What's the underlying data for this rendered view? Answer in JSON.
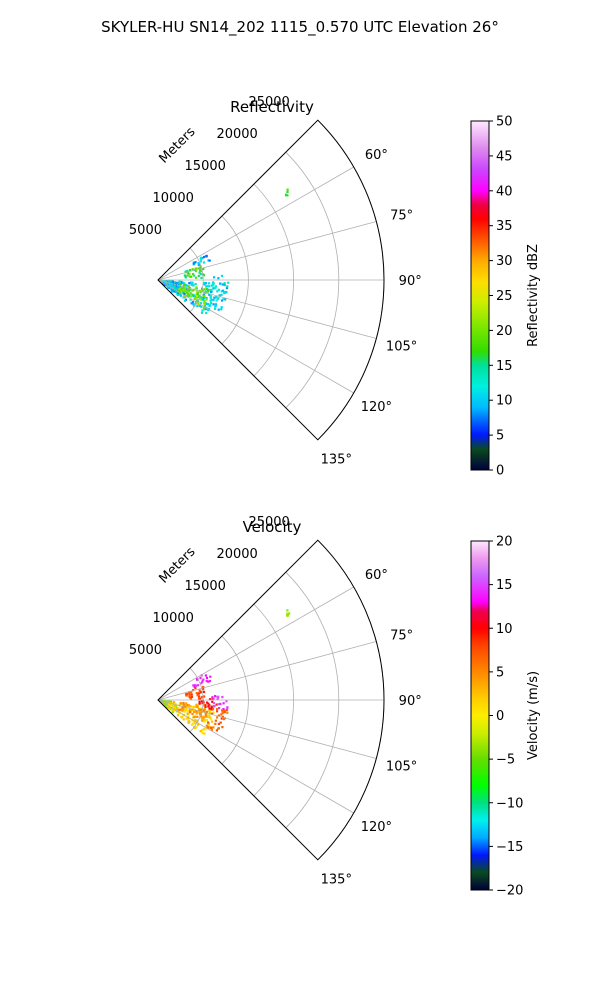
{
  "figure": {
    "suptitle": "SKYLER-HU  SN14_202  1115_0.570 UTC Elevation 26°"
  },
  "chart_data": [
    {
      "type": "heatmap",
      "title": "Reflectivity",
      "projection": "polar-sector",
      "radial_label": "Meters",
      "r_ticks": [
        5000,
        10000,
        15000,
        20000,
        25000
      ],
      "r_tick_labels": [
        "5000",
        "10000",
        "15000",
        "20000",
        "25000"
      ],
      "rlim": [
        0,
        25000
      ],
      "theta_range_deg": [
        45,
        135
      ],
      "theta_ticks_deg": [
        60,
        75,
        90,
        105,
        120,
        135
      ],
      "theta_tick_labels": [
        "60°",
        "75°",
        "90°",
        "105°",
        "120°",
        "135°"
      ],
      "grid": true,
      "colorbar": {
        "label": "Reflectivity dBZ",
        "range": [
          0,
          50
        ],
        "ticks": [
          0,
          5,
          10,
          15,
          20,
          25,
          30,
          35,
          40,
          45,
          50
        ],
        "tick_labels": [
          "0",
          "5",
          "10",
          "15",
          "20",
          "25",
          "30",
          "35",
          "40",
          "45",
          "50"
        ],
        "stops": [
          [
            0,
            "#00003a"
          ],
          [
            3,
            "#0a4a1e"
          ],
          [
            5,
            "#0018ff"
          ],
          [
            7,
            "#0066ff"
          ],
          [
            9,
            "#00bbff"
          ],
          [
            12,
            "#00f0e0"
          ],
          [
            15,
            "#00e09a"
          ],
          [
            17,
            "#33dd00"
          ],
          [
            21,
            "#88e800"
          ],
          [
            24,
            "#ccee00"
          ],
          [
            27,
            "#ffdd00"
          ],
          [
            30,
            "#ffaa00"
          ],
          [
            33,
            "#ff5500"
          ],
          [
            36,
            "#ff0000"
          ],
          [
            38,
            "#ee0044"
          ],
          [
            40,
            "#ff00ff"
          ],
          [
            43,
            "#cc44ff"
          ],
          [
            46,
            "#dd88ee"
          ],
          [
            50,
            "#ffe8ff"
          ]
        ]
      },
      "echo_regions": [
        {
          "r_range": [
            0,
            2500
          ],
          "theta_range": [
            97,
            130
          ],
          "value_range": [
            5,
            14
          ]
        },
        {
          "r_range": [
            1200,
            6500
          ],
          "theta_range": [
            93,
            128
          ],
          "value_range": [
            7,
            14
          ]
        },
        {
          "r_range": [
            2500,
            6000
          ],
          "theta_range": [
            100,
            122
          ],
          "value_range": [
            17,
            23
          ]
        },
        {
          "r_range": [
            6000,
            7800
          ],
          "theta_range": [
            86,
            118
          ],
          "value_range": [
            8,
            14
          ]
        },
        {
          "r_range": [
            4200,
            6400
          ],
          "theta_range": [
            60,
            70
          ],
          "value_range": [
            7,
            12
          ]
        },
        {
          "r_range": [
            3000,
            5200
          ],
          "theta_range": [
            72,
            88
          ],
          "value_range": [
            14,
            20
          ]
        },
        {
          "r_range": [
            17000,
            17500
          ],
          "theta_range": [
            55,
            57
          ],
          "value_range": [
            16,
            20
          ]
        }
      ]
    },
    {
      "type": "heatmap",
      "title": "Velocity",
      "projection": "polar-sector",
      "radial_label": "Meters",
      "r_ticks": [
        5000,
        10000,
        15000,
        20000,
        25000
      ],
      "r_tick_labels": [
        "5000",
        "10000",
        "15000",
        "20000",
        "25000"
      ],
      "rlim": [
        0,
        25000
      ],
      "theta_range_deg": [
        45,
        135
      ],
      "theta_ticks_deg": [
        60,
        75,
        90,
        105,
        120,
        135
      ],
      "theta_tick_labels": [
        "60°",
        "75°",
        "90°",
        "105°",
        "120°",
        "135°"
      ],
      "grid": true,
      "colorbar": {
        "label": "Velocity (m/s)",
        "range": [
          -20,
          20
        ],
        "ticks": [
          -20,
          -15,
          -10,
          -5,
          0,
          5,
          10,
          15,
          20
        ],
        "tick_labels": [
          "−20",
          "−15",
          "−10",
          "−5",
          "0",
          "5",
          "10",
          "15",
          "20"
        ],
        "stops": [
          [
            -20,
            "#00003a"
          ],
          [
            -18,
            "#0a4a1e"
          ],
          [
            -16,
            "#0018ff"
          ],
          [
            -14,
            "#00aaff"
          ],
          [
            -12,
            "#00f0f0"
          ],
          [
            -10,
            "#00e080"
          ],
          [
            -8,
            "#00ff00"
          ],
          [
            -5,
            "#66dd00"
          ],
          [
            -2,
            "#ccee00"
          ],
          [
            0,
            "#ffee00"
          ],
          [
            2,
            "#ffcc00"
          ],
          [
            5,
            "#ff8800"
          ],
          [
            8,
            "#ff4400"
          ],
          [
            10,
            "#ff0000"
          ],
          [
            12,
            "#ee0055"
          ],
          [
            13,
            "#ff00ff"
          ],
          [
            16,
            "#cc66ff"
          ],
          [
            18,
            "#ee99ee"
          ],
          [
            20,
            "#ffe8ff"
          ]
        ]
      },
      "echo_regions": [
        {
          "r_range": [
            0,
            2500
          ],
          "theta_range": [
            97,
            130
          ],
          "value_range": [
            -5,
            -3
          ]
        },
        {
          "r_range": [
            1200,
            6500
          ],
          "theta_range": [
            100,
            128
          ],
          "value_range": [
            0,
            3
          ]
        },
        {
          "r_range": [
            2500,
            6000
          ],
          "theta_range": [
            95,
            115
          ],
          "value_range": [
            3,
            6
          ]
        },
        {
          "r_range": [
            4500,
            6500
          ],
          "theta_range": [
            88,
            100
          ],
          "value_range": [
            9,
            11
          ]
        },
        {
          "r_range": [
            6000,
            7800
          ],
          "theta_range": [
            86,
            98
          ],
          "value_range": [
            13,
            16
          ]
        },
        {
          "r_range": [
            6000,
            7800
          ],
          "theta_range": [
            98,
            120
          ],
          "value_range": [
            5,
            8
          ]
        },
        {
          "r_range": [
            4200,
            6400
          ],
          "theta_range": [
            60,
            70
          ],
          "value_range": [
            13,
            15
          ]
        },
        {
          "r_range": [
            3000,
            5200
          ],
          "theta_range": [
            72,
            88
          ],
          "value_range": [
            6,
            9
          ]
        },
        {
          "r_range": [
            17000,
            17500
          ],
          "theta_range": [
            55,
            57
          ],
          "value_range": [
            -4,
            -2
          ]
        }
      ]
    }
  ]
}
